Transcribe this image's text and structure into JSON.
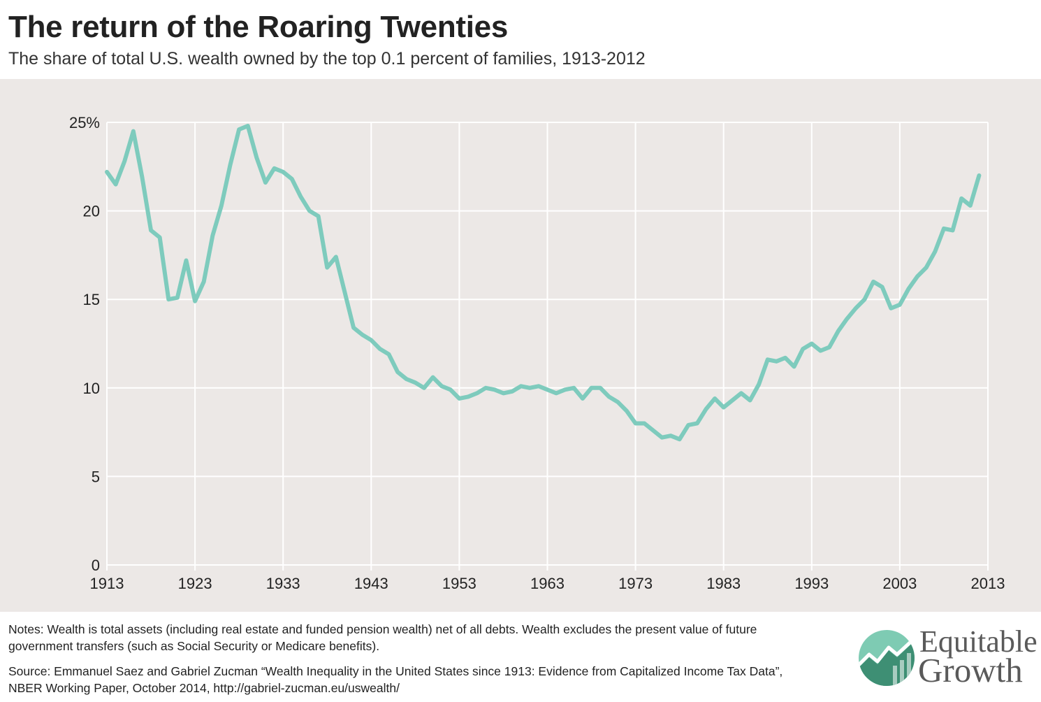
{
  "header": {
    "title": "The return of the Roaring Twenties",
    "subtitle": "The share of total U.S. wealth owned by the top 0.1 percent of families, 1913-2012"
  },
  "footer": {
    "notes": "Notes: Wealth is total assets (including real estate and funded pension wealth) net of all debts. Wealth excludes the present value of future government transfers (such as Social Security or Medicare benefits).",
    "source": "Source: Emmanuel Saez and Gabriel Zucman “Wealth Inequality in the United States since 1913: Evidence from Capitalized Income Tax Data”, NBER Working Paper, October 2014, http://gabriel-zucman.eu/uswealth/"
  },
  "logo": {
    "line1": "Equitable",
    "line2": "Growth"
  },
  "colors": {
    "line": "#7ecbbd",
    "panel_background": "#ece8e6",
    "gridline": "#ffffff",
    "logo_green_light": "#7ecbb3",
    "logo_green_dark": "#3e8f74"
  },
  "chart_data": {
    "type": "line",
    "title": "The return of the Roaring Twenties",
    "subtitle": "The share of total U.S. wealth owned by the top 0.1 percent of families, 1913-2012",
    "xlabel": "",
    "ylabel": "",
    "xlim": [
      1913,
      2013
    ],
    "ylim": [
      0,
      25
    ],
    "x_ticks": [
      1913,
      1923,
      1933,
      1943,
      1953,
      1963,
      1973,
      1983,
      1993,
      2003,
      2013
    ],
    "y_ticks": [
      0,
      5,
      10,
      15,
      20,
      25
    ],
    "y_tick_labels": [
      "0",
      "5",
      "10",
      "15",
      "20",
      "25%"
    ],
    "grid": true,
    "x": [
      1913,
      1914,
      1915,
      1916,
      1917,
      1918,
      1919,
      1920,
      1921,
      1922,
      1923,
      1924,
      1925,
      1926,
      1927,
      1928,
      1929,
      1930,
      1931,
      1932,
      1933,
      1934,
      1935,
      1936,
      1937,
      1938,
      1939,
      1940,
      1941,
      1942,
      1943,
      1944,
      1945,
      1946,
      1947,
      1948,
      1949,
      1950,
      1951,
      1952,
      1953,
      1954,
      1955,
      1956,
      1957,
      1958,
      1959,
      1960,
      1961,
      1962,
      1963,
      1964,
      1965,
      1966,
      1967,
      1968,
      1969,
      1970,
      1971,
      1972,
      1973,
      1974,
      1975,
      1976,
      1977,
      1978,
      1979,
      1980,
      1981,
      1982,
      1983,
      1984,
      1985,
      1986,
      1987,
      1988,
      1989,
      1990,
      1991,
      1992,
      1993,
      1994,
      1995,
      1996,
      1997,
      1998,
      1999,
      2000,
      2001,
      2002,
      2003,
      2004,
      2005,
      2006,
      2007,
      2008,
      2009,
      2010,
      2011,
      2012
    ],
    "series": [
      {
        "values": [
          22.2,
          21.5,
          22.8,
          24.5,
          21.9,
          18.9,
          18.5,
          15.0,
          15.1,
          17.2,
          14.9,
          16.0,
          18.6,
          20.3,
          22.6,
          24.6,
          24.8,
          23.0,
          21.6,
          22.4,
          22.2,
          21.8,
          20.8,
          20.0,
          19.7,
          16.8,
          17.4,
          15.4,
          13.4,
          13.0,
          12.7,
          12.2,
          11.9,
          10.9,
          10.5,
          10.3,
          10.0,
          10.6,
          10.1,
          9.9,
          9.4,
          9.5,
          9.7,
          10.0,
          9.9,
          9.7,
          9.8,
          10.1,
          10.0,
          10.1,
          9.9,
          9.7,
          9.9,
          10.0,
          9.4,
          10.0,
          10.0,
          9.5,
          9.2,
          8.7,
          8.0,
          8.0,
          7.6,
          7.2,
          7.3,
          7.1,
          7.9,
          8.0,
          8.8,
          9.4,
          8.9,
          9.3,
          9.7,
          9.3,
          10.2,
          11.6,
          11.5,
          11.7,
          11.2,
          12.2,
          12.5,
          12.1,
          12.3,
          13.2,
          13.9,
          14.5,
          15.0,
          16.0,
          15.7,
          14.5,
          14.7,
          15.6,
          16.3,
          16.8,
          17.7,
          19.0,
          18.9,
          20.7,
          20.3,
          22.0
        ]
      }
    ]
  }
}
